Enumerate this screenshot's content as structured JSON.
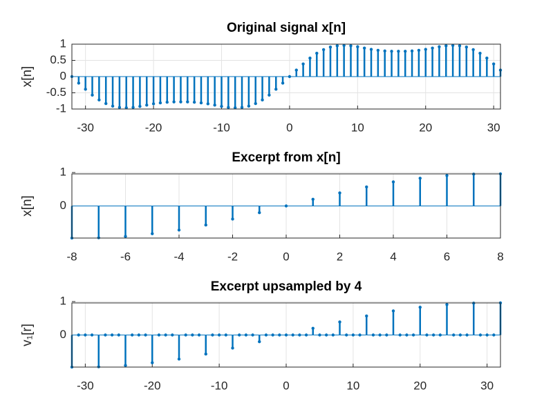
{
  "chart_data": [
    {
      "type": "stem",
      "title": "Original signal x[n]",
      "ylabel": "x[n]",
      "color": "#0072bd",
      "grid": true,
      "x": [
        -32,
        -31,
        -30,
        -29,
        -28,
        -27,
        -26,
        -25,
        -24,
        -23,
        -22,
        -21,
        -20,
        -19,
        -18,
        -17,
        -16,
        -15,
        -14,
        -13,
        -12,
        -11,
        -10,
        -9,
        -8,
        -7,
        -6,
        -5,
        -4,
        -3,
        -2,
        -1,
        0,
        1,
        2,
        3,
        4,
        5,
        6,
        7,
        8,
        9,
        10,
        11,
        12,
        13,
        14,
        15,
        16,
        17,
        18,
        19,
        20,
        21,
        22,
        23,
        24,
        25,
        26,
        27,
        28,
        29,
        30,
        31
      ],
      "values": [
        0,
        -0.2,
        -0.39,
        -0.57,
        -0.72,
        -0.83,
        -0.91,
        -0.95,
        -0.96,
        -0.95,
        -0.92,
        -0.88,
        -0.84,
        -0.81,
        -0.79,
        -0.78,
        -0.78,
        -0.78,
        -0.79,
        -0.81,
        -0.84,
        -0.88,
        -0.92,
        -0.95,
        -0.96,
        -0.95,
        -0.91,
        -0.83,
        -0.72,
        -0.57,
        -0.39,
        -0.2,
        0,
        0.2,
        0.39,
        0.57,
        0.72,
        0.83,
        0.91,
        0.95,
        0.96,
        0.95,
        0.92,
        0.88,
        0.84,
        0.81,
        0.79,
        0.78,
        0.78,
        0.78,
        0.79,
        0.81,
        0.84,
        0.88,
        0.92,
        0.95,
        0.96,
        0.95,
        0.91,
        0.83,
        0.72,
        0.57,
        0.39,
        0.2
      ],
      "xlim": [
        -32,
        31
      ],
      "xticks": [
        -30,
        -20,
        -10,
        0,
        10,
        20,
        30
      ],
      "ylim": [
        -1,
        1
      ],
      "yticks": [
        -1,
        -0.5,
        0,
        0.5,
        1
      ]
    },
    {
      "type": "stem",
      "title": "Excerpt from x[n]",
      "ylabel": "x[n]",
      "color": "#0072bd",
      "grid": true,
      "x": [
        -8,
        -7,
        -6,
        -5,
        -4,
        -3,
        -2,
        -1,
        0,
        1,
        2,
        3,
        4,
        5,
        6,
        7,
        8
      ],
      "values": [
        -0.96,
        -0.95,
        -0.91,
        -0.83,
        -0.72,
        -0.57,
        -0.39,
        -0.2,
        0,
        0.2,
        0.39,
        0.57,
        0.72,
        0.83,
        0.91,
        0.95,
        0.96
      ],
      "xlim": [
        -8,
        8
      ],
      "xticks": [
        -8,
        -6,
        -4,
        -2,
        0,
        2,
        4,
        6,
        8
      ],
      "ylim": [
        -0.96,
        0.96
      ],
      "yticks": [
        0,
        1
      ]
    },
    {
      "type": "stem",
      "title": "Excerpt upsampled by 4",
      "ylabel": "v₁[r]",
      "color": "#0072bd",
      "grid": true,
      "x": [
        -32,
        -31,
        -30,
        -29,
        -28,
        -27,
        -26,
        -25,
        -24,
        -23,
        -22,
        -21,
        -20,
        -19,
        -18,
        -17,
        -16,
        -15,
        -14,
        -13,
        -12,
        -11,
        -10,
        -9,
        -8,
        -7,
        -6,
        -5,
        -4,
        -3,
        -2,
        -1,
        0,
        1,
        2,
        3,
        4,
        5,
        6,
        7,
        8,
        9,
        10,
        11,
        12,
        13,
        14,
        15,
        16,
        17,
        18,
        19,
        20,
        21,
        22,
        23,
        24,
        25,
        26,
        27,
        28,
        29,
        30,
        31,
        32
      ],
      "values": [
        -0.96,
        0,
        0,
        0,
        -0.95,
        0,
        0,
        0,
        -0.91,
        0,
        0,
        0,
        -0.83,
        0,
        0,
        0,
        -0.72,
        0,
        0,
        0,
        -0.57,
        0,
        0,
        0,
        -0.39,
        0,
        0,
        0,
        -0.2,
        0,
        0,
        0,
        0,
        0,
        0,
        0,
        0.2,
        0,
        0,
        0,
        0.39,
        0,
        0,
        0,
        0.57,
        0,
        0,
        0,
        0.72,
        0,
        0,
        0,
        0.83,
        0,
        0,
        0,
        0.91,
        0,
        0,
        0,
        0.95,
        0,
        0,
        0,
        0.96
      ],
      "xlim": [
        -32,
        32
      ],
      "xticks": [
        -30,
        -20,
        -10,
        0,
        10,
        20,
        30
      ],
      "ylim": [
        -0.96,
        0.96
      ],
      "yticks": [
        0,
        1
      ]
    }
  ]
}
